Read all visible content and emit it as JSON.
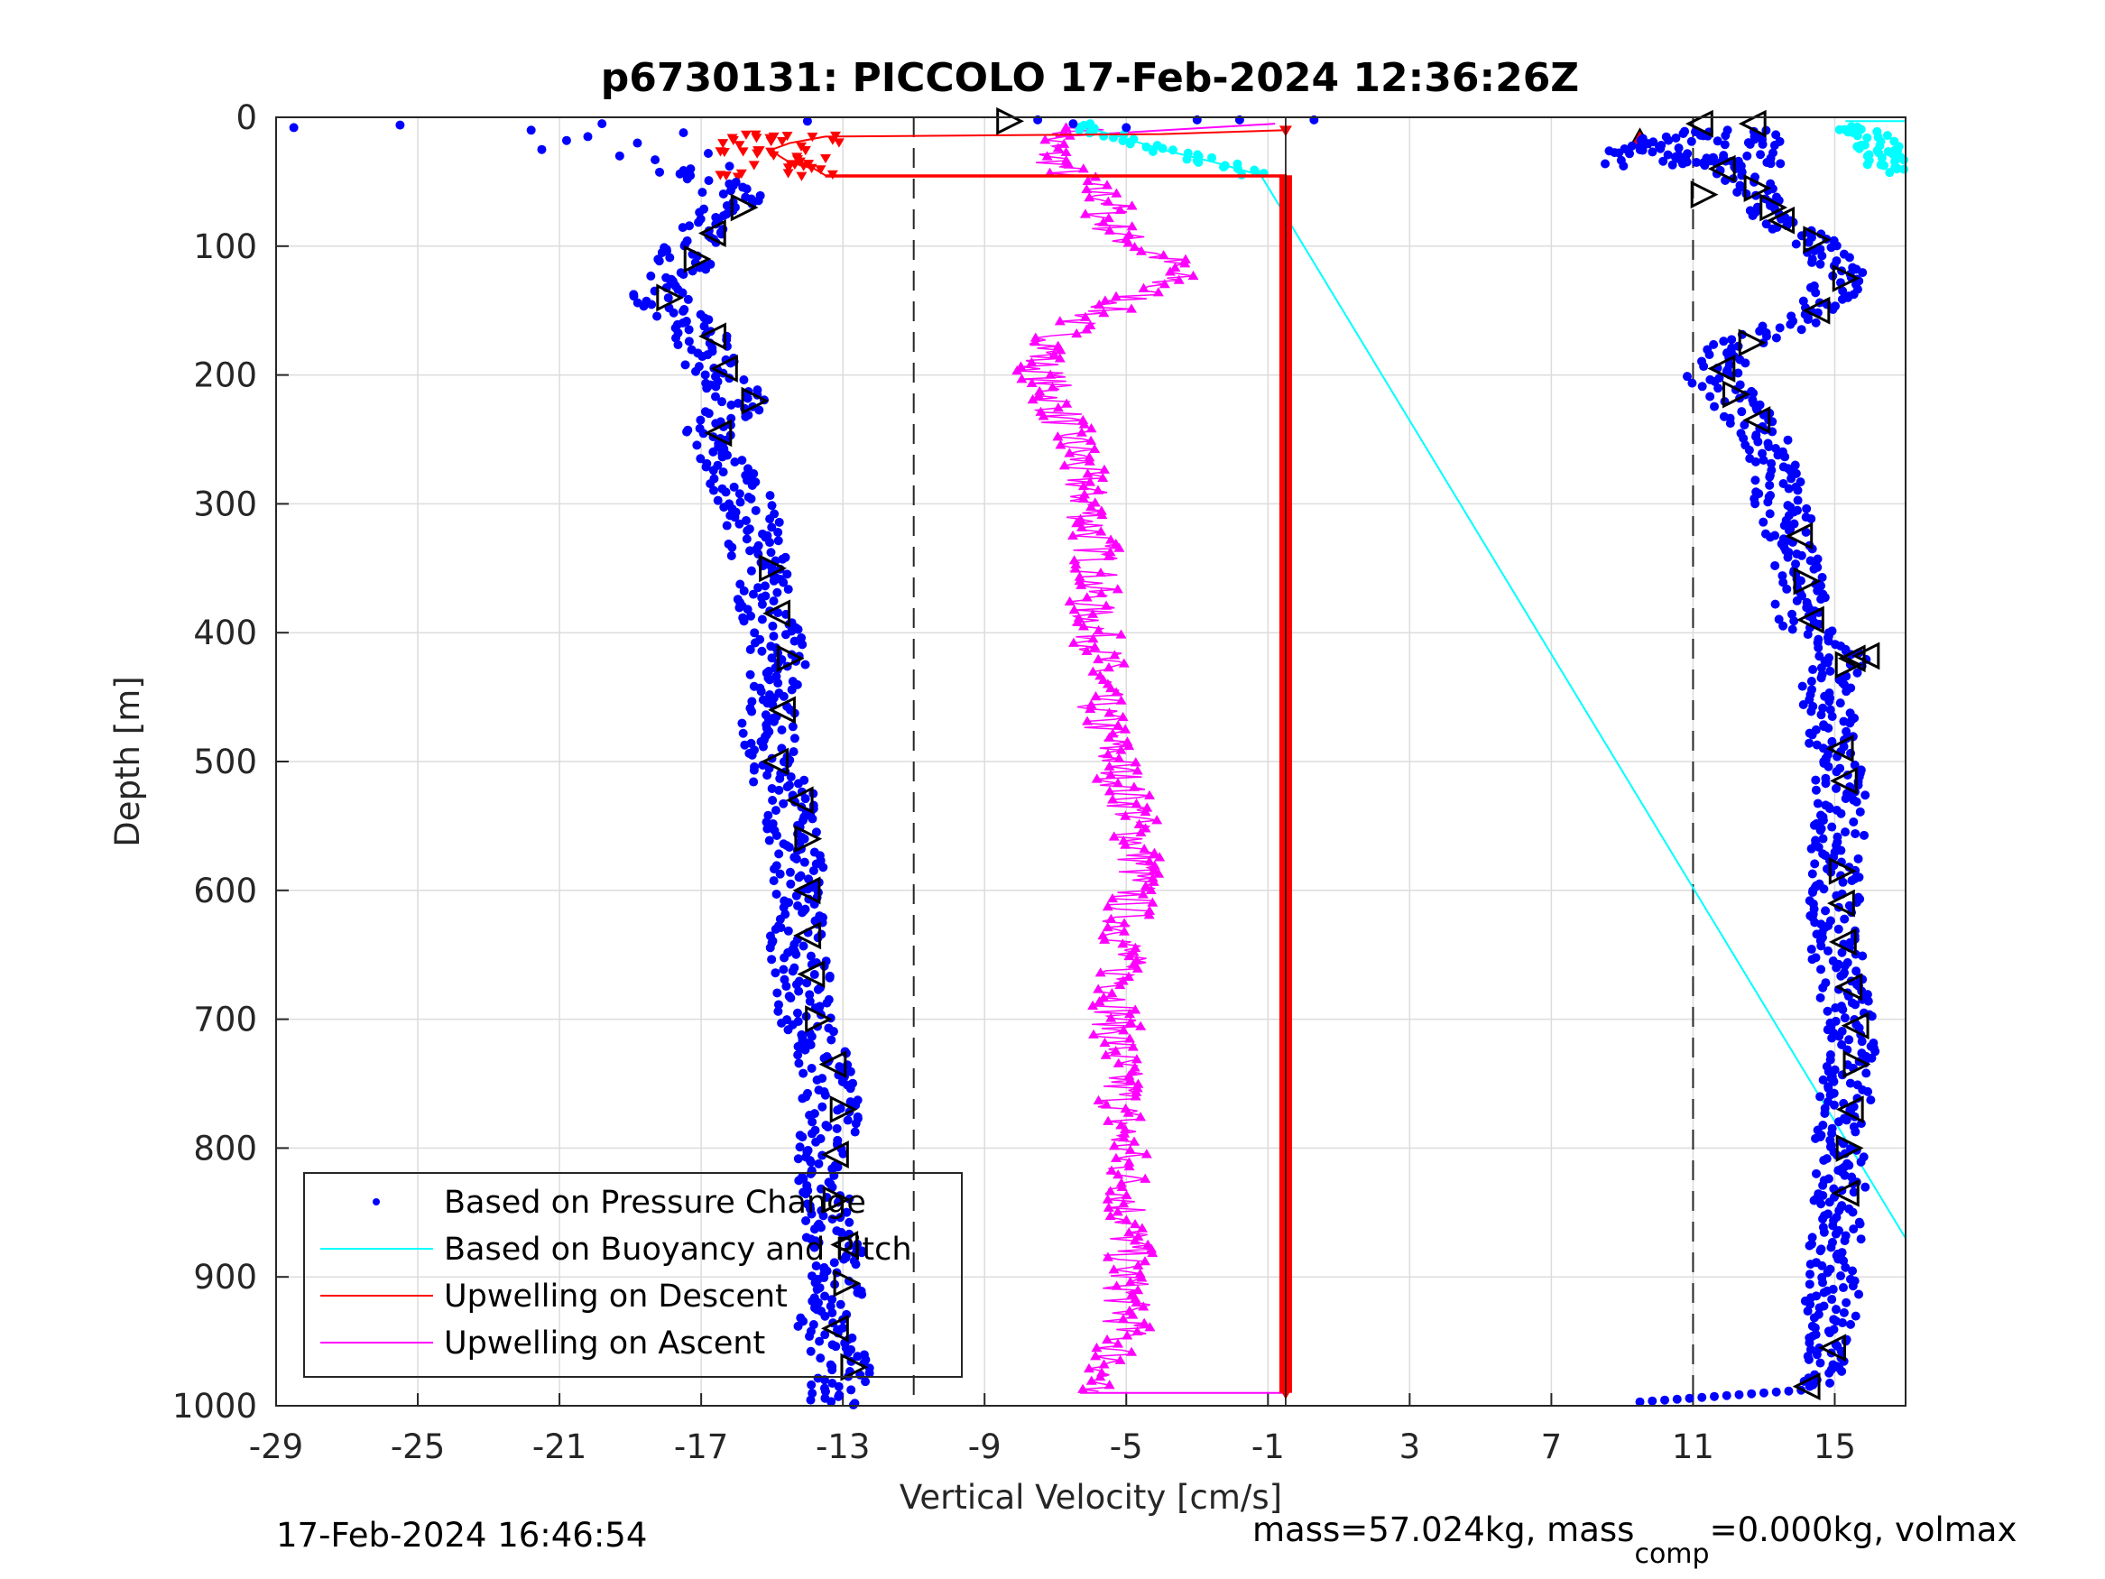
{
  "chart_data": {
    "type": "scatter",
    "title": "p6730131: PICCOLO 17-Feb-2024 12:36:26Z",
    "xlabel": "Vertical Velocity [cm/s]",
    "ylabel": "Depth [m]",
    "xlim": [
      -29,
      17
    ],
    "ylim": [
      0,
      1000
    ],
    "y_reversed": true,
    "grid": true,
    "xticks": [
      -29,
      -25,
      -21,
      -17,
      -13,
      -9,
      -5,
      -1,
      3,
      7,
      11,
      15
    ],
    "yticks": [
      0,
      100,
      200,
      300,
      400,
      500,
      600,
      700,
      800,
      900,
      1000
    ],
    "reference_lines_x": [
      -11,
      11
    ],
    "legend": {
      "placement": "bottom-left",
      "entries": [
        {
          "label": "Based on Pressure Change",
          "color": "#0000ff",
          "style": "dot"
        },
        {
          "label": "Based on Buoyancy and Pitch",
          "color": "#00ffff",
          "style": "line"
        },
        {
          "label": "Upwelling on Descent",
          "color": "#ff0000",
          "style": "line"
        },
        {
          "label": "Upwelling on Ascent",
          "color": "#ff00ff",
          "style": "line"
        }
      ]
    },
    "series": [
      {
        "name": "Based on Pressure Change",
        "color": "#0000ff",
        "description_branches": "descent and ascent"
      },
      {
        "name": "Based on Buoyancy and Pitch",
        "color": "#00ffff"
      },
      {
        "name": "Upwelling on Descent",
        "color": "#ff0000"
      },
      {
        "name": "Upwelling on Ascent",
        "color": "#ff00ff"
      }
    ],
    "descent_pressure_profile": [
      [
        8,
        -28.5
      ],
      [
        6,
        -25.5
      ],
      [
        10,
        -21.8
      ],
      [
        20,
        -20.5
      ],
      [
        30,
        -19.2
      ],
      [
        40,
        -18
      ],
      [
        50,
        -16.5
      ],
      [
        65,
        -15.9
      ],
      [
        80,
        -16.5
      ],
      [
        95,
        -17.2
      ],
      [
        115,
        -17.5
      ],
      [
        140,
        -18.2
      ],
      [
        165,
        -17
      ],
      [
        190,
        -16.8
      ],
      [
        220,
        -15.8
      ],
      [
        250,
        -17
      ],
      [
        280,
        -16
      ],
      [
        320,
        -15.5
      ],
      [
        350,
        -15.3
      ],
      [
        380,
        -15.2
      ],
      [
        420,
        -14.8
      ],
      [
        460,
        -15
      ],
      [
        500,
        -15.2
      ],
      [
        530,
        -14.5
      ],
      [
        560,
        -14.3
      ],
      [
        600,
        -14.3
      ],
      [
        630,
        -14.3
      ],
      [
        660,
        -14.2
      ],
      [
        700,
        -14
      ],
      [
        740,
        -13.5
      ],
      [
        770,
        -13.3
      ],
      [
        800,
        -13.5
      ],
      [
        840,
        -13.5
      ],
      [
        880,
        -13.2
      ],
      [
        910,
        -13.2
      ],
      [
        940,
        -13.5
      ],
      [
        970,
        -13
      ],
      [
        1000,
        -13.2
      ]
    ],
    "ascent_pressure_profile": [
      [
        1000,
        9.5
      ],
      [
        995,
        11.5
      ],
      [
        990,
        13.8
      ],
      [
        970,
        14.7
      ],
      [
        940,
        14.8
      ],
      [
        900,
        15
      ],
      [
        860,
        15
      ],
      [
        820,
        15.2
      ],
      [
        780,
        15.2
      ],
      [
        740,
        15.4
      ],
      [
        700,
        15.4
      ],
      [
        660,
        15.1
      ],
      [
        620,
        15
      ],
      [
        580,
        15
      ],
      [
        540,
        15.2
      ],
      [
        500,
        15
      ],
      [
        470,
        14.9
      ],
      [
        440,
        14.8
      ],
      [
        420,
        15.3
      ],
      [
        400,
        14.2
      ],
      [
        370,
        14
      ],
      [
        340,
        14
      ],
      [
        300,
        13.5
      ],
      [
        260,
        13.2
      ],
      [
        230,
        12.5
      ],
      [
        200,
        11.5
      ],
      [
        180,
        12
      ],
      [
        160,
        13.8
      ],
      [
        140,
        14.8
      ],
      [
        120,
        15.2
      ],
      [
        100,
        14.6
      ],
      [
        80,
        13.3
      ],
      [
        60,
        12.8
      ],
      [
        45,
        12.2
      ],
      [
        30,
        10.5
      ],
      [
        20,
        9.5
      ],
      [
        10,
        11.5
      ],
      [
        5,
        12.5
      ]
    ],
    "upwelling_descent_profile": [
      [
        10,
        -0.5
      ],
      [
        13,
        -4
      ],
      [
        15,
        -13.5
      ],
      [
        20,
        -14.5
      ],
      [
        25,
        -15
      ],
      [
        30,
        -14.8
      ],
      [
        35,
        -14.5
      ],
      [
        40,
        -13.8
      ],
      [
        45,
        -13.5
      ],
      [
        45,
        -0.5
      ],
      [
        100,
        -0.5
      ],
      [
        300,
        -0.5
      ],
      [
        500,
        -0.5
      ],
      [
        700,
        -0.5
      ],
      [
        900,
        -0.5
      ],
      [
        990,
        -0.5
      ]
    ],
    "upwelling_ascent_profile": [
      [
        990,
        -6.3
      ],
      [
        970,
        -5.4
      ],
      [
        940,
        -5
      ],
      [
        900,
        -5
      ],
      [
        860,
        -4.9
      ],
      [
        820,
        -5
      ],
      [
        780,
        -5.1
      ],
      [
        740,
        -5.2
      ],
      [
        700,
        -5.3
      ],
      [
        660,
        -5.1
      ],
      [
        620,
        -5
      ],
      [
        580,
        -4.6
      ],
      [
        540,
        -4.8
      ],
      [
        500,
        -5.3
      ],
      [
        460,
        -5.8
      ],
      [
        420,
        -5.7
      ],
      [
        380,
        -6
      ],
      [
        340,
        -5.8
      ],
      [
        300,
        -6.1
      ],
      [
        260,
        -6.4
      ],
      [
        220,
        -7
      ],
      [
        190,
        -7.5
      ],
      [
        160,
        -6.5
      ],
      [
        140,
        -4.8
      ],
      [
        125,
        -3.7
      ],
      [
        110,
        -3.9
      ],
      [
        95,
        -5
      ],
      [
        80,
        -5.6
      ],
      [
        65,
        -5.4
      ],
      [
        55,
        -6
      ],
      [
        40,
        -6.8
      ],
      [
        25,
        -7.2
      ],
      [
        15,
        -7
      ],
      [
        8,
        -6
      ]
    ],
    "buoyancy_pitch_profile": [
      [
        5,
        -6.5
      ],
      [
        15,
        -5.2
      ],
      [
        25,
        -4
      ],
      [
        35,
        -2.5
      ],
      [
        45,
        -1.2
      ],
      [
        870,
        17
      ]
    ],
    "buoyancy_pitch_surface_profile": [
      [
        5,
        15.3
      ],
      [
        15,
        16
      ],
      [
        25,
        16.3
      ],
      [
        35,
        16.5
      ],
      [
        40,
        16.5
      ]
    ],
    "footer_left": "17-Feb-2024 16:46:54",
    "footer_right": "mass=57.024kg, mass",
    "footer_right_sub": "comp",
    "footer_right_end": "=0.000kg, volmax"
  }
}
